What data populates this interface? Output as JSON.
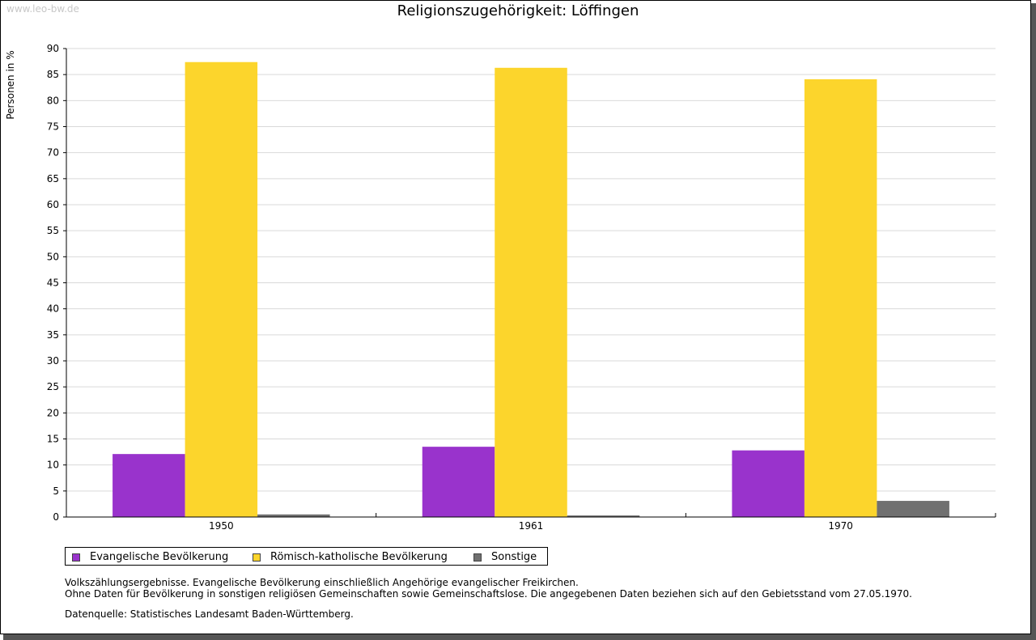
{
  "watermark": "www.leo-bw.de",
  "chart_data": {
    "type": "bar",
    "title": "Religionszugehörigkeit: Löffingen",
    "xlabel": "",
    "ylabel": "Personen in %",
    "categories": [
      "1950",
      "1961",
      "1970"
    ],
    "ylim": [
      0,
      90
    ],
    "yticks": [
      0,
      5,
      10,
      15,
      20,
      25,
      30,
      35,
      40,
      45,
      50,
      55,
      60,
      65,
      70,
      75,
      80,
      85,
      90
    ],
    "grid": true,
    "legend_position": "bottom-left",
    "series": [
      {
        "name": "Evangelische Bevölkerung",
        "color": "#9933cc",
        "values": [
          12.1,
          13.5,
          12.8
        ]
      },
      {
        "name": "Römisch-katholische Bevölkerung",
        "color": "#fcd52c",
        "values": [
          87.4,
          86.3,
          84.1
        ]
      },
      {
        "name": "Sonstige",
        "color": "#707070",
        "values": [
          0.5,
          0.3,
          3.1
        ]
      }
    ]
  },
  "notes": {
    "line1": "Volkszählungsergebnisse. Evangelische Bevölkerung einschließlich Angehörige evangelischer Freikirchen.",
    "line2": "Ohne Daten für Bevölkerung in sonstigen religiösen Gemeinschaften sowie Gemeinschaftslose. Die angegebenen Daten beziehen sich auf den Gebietsstand vom 27.05.1970.",
    "source": "Datenquelle: Statistisches Landesamt Baden-Württemberg."
  }
}
